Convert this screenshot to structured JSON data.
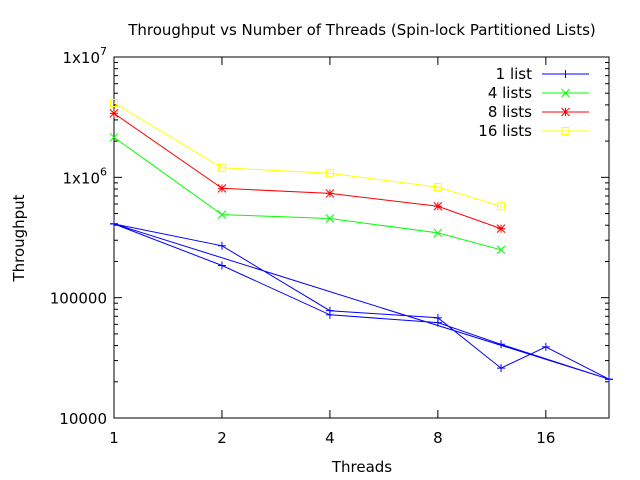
{
  "chart_data": {
    "type": "line",
    "title": "Throughput vs Number of Threads (Spin-lock Partitioned Lists)",
    "xlabel": "Threads",
    "ylabel": "Throughput",
    "x_scale": "log2",
    "y_scale": "log10",
    "xlim": [
      1,
      24
    ],
    "ylim": [
      10000,
      10000000
    ],
    "x_ticks": [
      {
        "value": 1,
        "label": "1"
      },
      {
        "value": 2,
        "label": "2"
      },
      {
        "value": 4,
        "label": "4"
      },
      {
        "value": 8,
        "label": "8"
      },
      {
        "value": 16,
        "label": "16"
      }
    ],
    "y_ticks": [
      {
        "value": 10000,
        "label": "10000"
      },
      {
        "value": 100000,
        "label": "100000"
      },
      {
        "value": 1000000,
        "label": "1x10^6"
      },
      {
        "value": 10000000,
        "label": "1x10^7"
      }
    ],
    "grid": false,
    "legend_position": "top-right",
    "series": [
      {
        "name": "1 list",
        "color": "#0000ff",
        "marker": "plus",
        "points": [
          [
            1,
            410000
          ],
          [
            2,
            270000
          ],
          [
            4,
            78000
          ],
          [
            8,
            68000
          ],
          [
            12,
            26000
          ],
          [
            16,
            39000
          ],
          [
            24,
            21000
          ],
          [
            1,
            410000
          ],
          [
            2,
            185000
          ],
          [
            4,
            72000
          ],
          [
            8,
            62000
          ],
          [
            12,
            41000
          ],
          [
            24,
            21000
          ],
          [
            1,
            410000
          ]
        ]
      },
      {
        "name": "4 lists",
        "color": "#00ff00",
        "marker": "cross",
        "points": [
          [
            1,
            2150000
          ],
          [
            2,
            490000
          ],
          [
            4,
            455000
          ],
          [
            8,
            345000
          ],
          [
            12,
            250000
          ]
        ]
      },
      {
        "name": "8 lists",
        "color": "#ff0000",
        "marker": "star",
        "points": [
          [
            1,
            3400000
          ],
          [
            2,
            810000
          ],
          [
            4,
            735000
          ],
          [
            8,
            575000
          ],
          [
            12,
            375000
          ]
        ]
      },
      {
        "name": "16 lists",
        "color": "#ffff00",
        "marker": "square",
        "points": [
          [
            1,
            4150000
          ],
          [
            2,
            1200000
          ],
          [
            4,
            1080000
          ],
          [
            8,
            830000
          ],
          [
            12,
            575000
          ]
        ]
      }
    ]
  }
}
